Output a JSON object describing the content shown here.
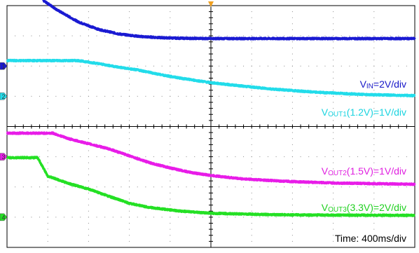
{
  "chart_data": {
    "type": "line",
    "x_unit": "ms",
    "x_range": [
      -2000,
      2000
    ],
    "x_divisions": 10,
    "y_divisions": 8,
    "grid": true,
    "timebase_label": "Time: 400ms/div",
    "trigger_marker_color": "#f0a020",
    "series": [
      {
        "channel": 1,
        "label_main": "V",
        "label_sub": "IN",
        "label_rest": "=2V/div",
        "label_color": "#1616c8",
        "trace_color": "#1a1ad2",
        "ground_div": 2.0,
        "points": [
          [
            -2000,
            5.52
          ],
          [
            -1860,
            5.52
          ],
          [
            -1760,
            4.86
          ],
          [
            -1640,
            4.16
          ],
          [
            -1500,
            3.84
          ],
          [
            -1300,
            3.46
          ],
          [
            -1100,
            3.21
          ],
          [
            -900,
            3.06
          ],
          [
            -700,
            2.98
          ],
          [
            -500,
            2.94
          ],
          [
            -300,
            2.92
          ],
          [
            0,
            2.91
          ],
          [
            500,
            2.91
          ],
          [
            1000,
            2.91
          ],
          [
            2000,
            2.91
          ]
        ]
      },
      {
        "channel": 2,
        "label_main": "V",
        "label_sub": "OUT1",
        "label_rest": "(1.2V)=1V/div",
        "label_color": "#1ad4e0",
        "trace_color": "#22dcea",
        "ground_div": 1.0,
        "points": [
          [
            -2000,
            2.18
          ],
          [
            -1300,
            2.18
          ],
          [
            -1100,
            2.08
          ],
          [
            -900,
            1.96
          ],
          [
            -700,
            1.86
          ],
          [
            -500,
            1.72
          ],
          [
            -300,
            1.6
          ],
          [
            0,
            1.45
          ],
          [
            300,
            1.34
          ],
          [
            600,
            1.24
          ],
          [
            1000,
            1.14
          ],
          [
            1500,
            1.06
          ],
          [
            2000,
            1.02
          ]
        ]
      },
      {
        "channel": 3,
        "label_main": "V",
        "label_sub": "OUT2",
        "label_rest": "(1.5V)=1V/div",
        "label_color": "#e020e0",
        "trace_color": "#e81ce8",
        "ground_div": -1.0,
        "points": [
          [
            -2000,
            -0.22
          ],
          [
            -1550,
            -0.22
          ],
          [
            -1400,
            -0.4
          ],
          [
            -1200,
            -0.57
          ],
          [
            -1000,
            -0.74
          ],
          [
            -800,
            -0.97
          ],
          [
            -600,
            -1.2
          ],
          [
            -400,
            -1.37
          ],
          [
            -200,
            -1.52
          ],
          [
            0,
            -1.62
          ],
          [
            300,
            -1.73
          ],
          [
            700,
            -1.81
          ],
          [
            1200,
            -1.87
          ],
          [
            2000,
            -1.91
          ]
        ]
      },
      {
        "channel": 4,
        "label_main": "V",
        "label_sub": "OUT3",
        "label_rest": "(3.3V)=2V/div",
        "label_color": "#20d020",
        "trace_color": "#24e024",
        "ground_div": -3.0,
        "points": [
          [
            -2000,
            -1.03
          ],
          [
            -1700,
            -1.03
          ],
          [
            -1600,
            -1.64
          ],
          [
            -1400,
            -1.88
          ],
          [
            -1200,
            -2.07
          ],
          [
            -1000,
            -2.31
          ],
          [
            -800,
            -2.54
          ],
          [
            -600,
            -2.68
          ],
          [
            -300,
            -2.8
          ],
          [
            0,
            -2.87
          ],
          [
            500,
            -2.91
          ],
          [
            1000,
            -2.93
          ],
          [
            2000,
            -2.94
          ]
        ]
      }
    ]
  }
}
